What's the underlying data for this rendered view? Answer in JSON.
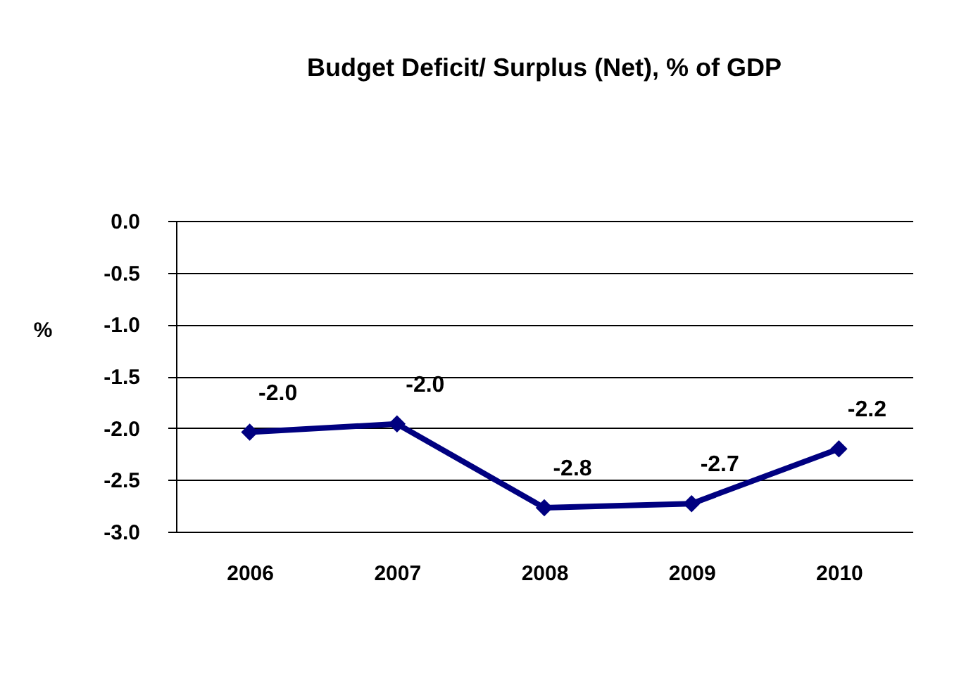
{
  "chart_data": {
    "type": "line",
    "title": "Budget Deficit/ Surplus (Net), % of GDP",
    "ylabel": "%",
    "categories": [
      "2006",
      "2007",
      "2008",
      "2009",
      "2010"
    ],
    "series": [
      {
        "color": "#000080",
        "values": [
          -2.04,
          -1.96,
          -2.77,
          -2.73,
          -2.2
        ],
        "value_labels": [
          "-2.0",
          "-2.0",
          "-2.8",
          "-2.7",
          "-2.2"
        ]
      }
    ],
    "ylim": [
      -3,
      0
    ],
    "yticks": [
      {
        "value": 0,
        "label": "0.0"
      },
      {
        "value": -0.5,
        "label": "-0.5"
      },
      {
        "value": -1,
        "label": "-1.0"
      },
      {
        "value": -1.5,
        "label": "-1.5"
      },
      {
        "value": -2,
        "label": "-2.0"
      },
      {
        "value": -2.5,
        "label": "-2.5"
      },
      {
        "value": -3,
        "label": "-3.0"
      }
    ],
    "grid": "y",
    "marker": "diamond",
    "line_style": "solid"
  }
}
